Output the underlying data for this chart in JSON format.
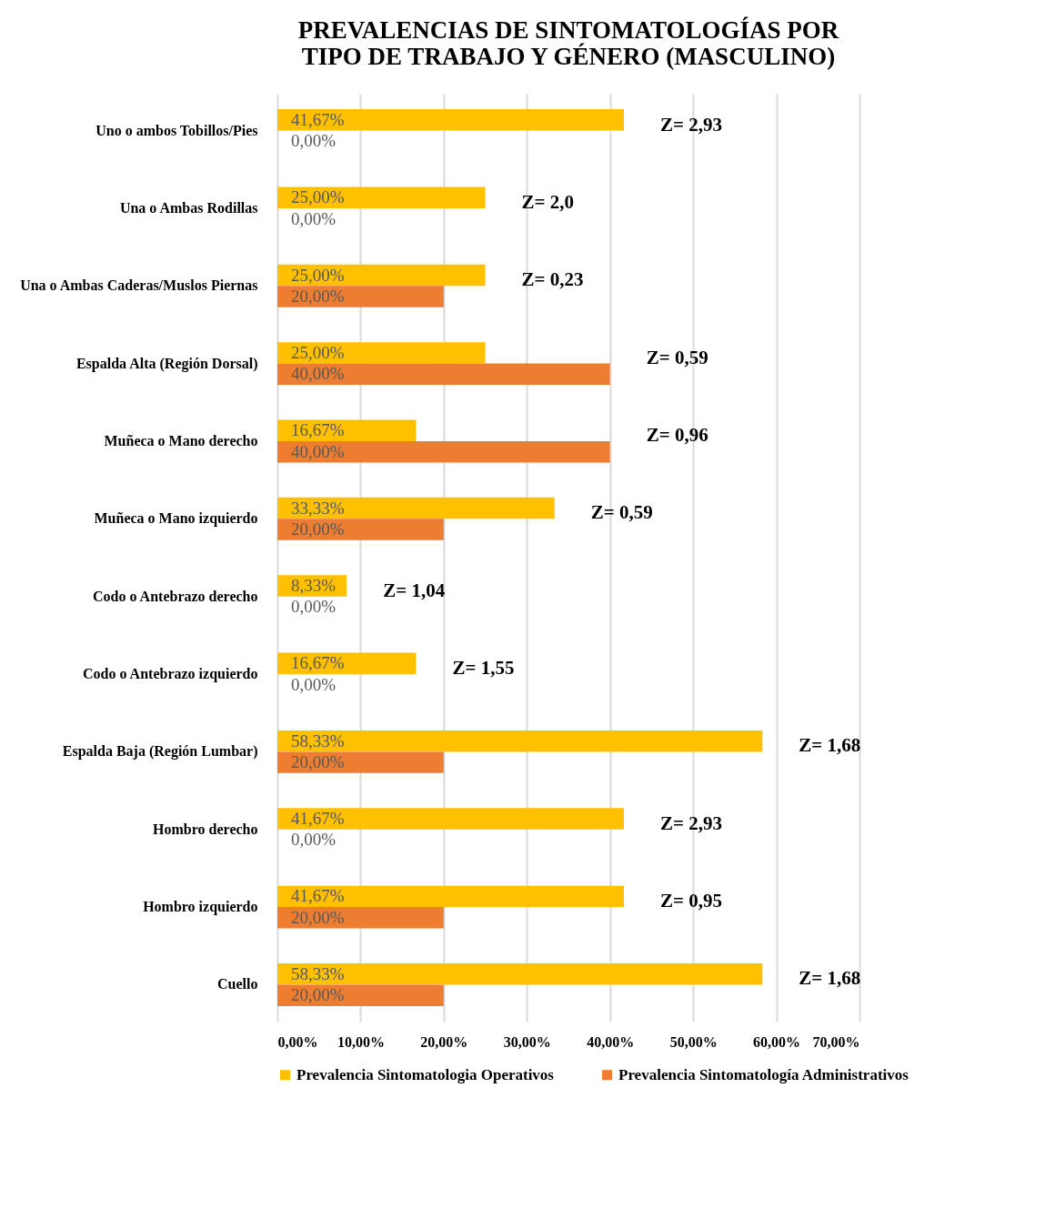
{
  "chart_data": {
    "type": "bar",
    "orientation": "horizontal",
    "title": "PREVALENCIAS DE SINTOMATOLOGÍAS POR TIPO DE TRABAJO Y GÉNERO (MASCULINO)",
    "categories": [
      "Uno o ambos Tobillos/Pies",
      "Una o Ambas Rodillas",
      "Una o Ambas Caderas/Muslos Piernas",
      "Espalda Alta (Región Dorsal)",
      "Muñeca o Mano derecho",
      "Muñeca o Mano izquierdo",
      "Codo o Antebrazo derecho",
      "Codo o Antebrazo izquierdo",
      "Espalda Baja (Región Lumbar)",
      "Hombro derecho",
      "Hombro izquierdo",
      "Cuello"
    ],
    "series": [
      {
        "name": "Prevalencia Sintomatologia Operativos",
        "color": "#ffc000",
        "values": [
          41.67,
          25,
          25,
          25,
          16.67,
          33.33,
          8.33,
          16.67,
          58.33,
          41.67,
          41.67,
          58.33
        ],
        "value_labels": [
          "41,67%",
          "25,00%",
          "25,00%",
          "25,00%",
          "16,67%",
          "33,33%",
          "8,33%",
          "16,67%",
          "58,33%",
          "41,67%",
          "41,67%",
          "58,33%"
        ]
      },
      {
        "name": "Prevalencia Sintomatología Administrativos",
        "color": "#ed7d31",
        "values": [
          0,
          0,
          20,
          40,
          40,
          20,
          0,
          0,
          20,
          0,
          20,
          20
        ],
        "value_labels": [
          "0,00%",
          "0,00%",
          "20,00%",
          "40,00%",
          "40,00%",
          "20,00%",
          "0,00%",
          "0,00%",
          "20,00%",
          "0,00%",
          "20,00%",
          "20,00%"
        ]
      }
    ],
    "xlim": [
      0,
      70
    ],
    "xticks": [
      {
        "value": 0,
        "label": "0,00%"
      },
      {
        "value": 10,
        "label": "10,00%"
      },
      {
        "value": 20,
        "label": "20,00%"
      },
      {
        "value": 30,
        "label": "30,00%"
      },
      {
        "value": 40,
        "label": "40,00%"
      },
      {
        "value": 50,
        "label": "50,00%"
      },
      {
        "value": 60,
        "label": "60,00%"
      },
      {
        "value": 70,
        "label": "70,00%"
      }
    ],
    "grid": "x",
    "legend": "bottom",
    "annotations": [
      "Z= 2,93",
      "Z= 2,0",
      "Z= 0,23",
      "Z= 0,59",
      "Z= 0,96",
      "Z= 0,59",
      "Z= 1,04",
      "Z= 1,55",
      "Z= 1,68",
      "Z= 2,93",
      "Z= 0,95",
      "Z= 1,68"
    ]
  }
}
